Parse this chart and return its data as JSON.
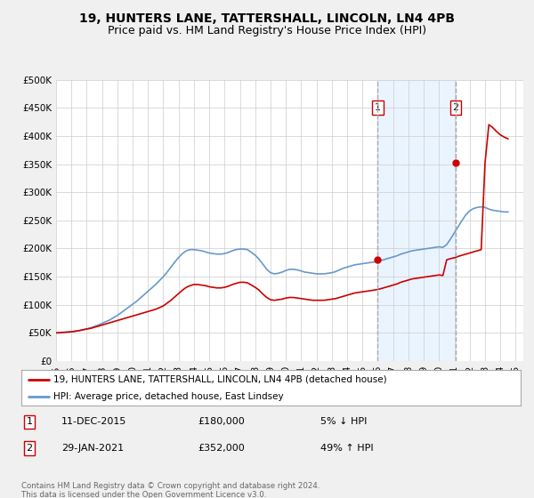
{
  "title": "19, HUNTERS LANE, TATTERSHALL, LINCOLN, LN4 4PB",
  "subtitle": "Price paid vs. HM Land Registry's House Price Index (HPI)",
  "title_fontsize": 10,
  "subtitle_fontsize": 9,
  "ylim": [
    0,
    500000
  ],
  "xlim_start": 1995.0,
  "xlim_end": 2025.5,
  "yticks": [
    0,
    50000,
    100000,
    150000,
    200000,
    250000,
    300000,
    350000,
    400000,
    450000,
    500000
  ],
  "ytick_labels": [
    "£0",
    "£50K",
    "£100K",
    "£150K",
    "£200K",
    "£250K",
    "£300K",
    "£350K",
    "£400K",
    "£450K",
    "£500K"
  ],
  "xticks": [
    1995,
    1996,
    1997,
    1998,
    1999,
    2000,
    2001,
    2002,
    2003,
    2004,
    2005,
    2006,
    2007,
    2008,
    2009,
    2010,
    2011,
    2012,
    2013,
    2014,
    2015,
    2016,
    2017,
    2018,
    2019,
    2020,
    2021,
    2022,
    2023,
    2024,
    2025
  ],
  "bg_color": "#f0f0f0",
  "plot_bg_color": "#ffffff",
  "grid_color": "#cccccc",
  "event1_x": 2016.0,
  "event1_label": "1",
  "event1_price": 180000,
  "event1_date": "11-DEC-2015",
  "event1_hpi_pct": "5% ↓ HPI",
  "event2_x": 2021.08,
  "event2_label": "2",
  "event2_price": 352000,
  "event2_date": "29-JAN-2021",
  "event2_hpi_pct": "49% ↑ HPI",
  "shade_color": "#ddeeff",
  "legend_line1": "19, HUNTERS LANE, TATTERSHALL, LINCOLN, LN4 4PB (detached house)",
  "legend_line2": "HPI: Average price, detached house, East Lindsey",
  "footer": "Contains HM Land Registry data © Crown copyright and database right 2024.\nThis data is licensed under the Open Government Licence v3.0.",
  "hpi_x": [
    1995.0,
    1995.25,
    1995.5,
    1995.75,
    1996.0,
    1996.25,
    1996.5,
    1996.75,
    1997.0,
    1997.25,
    1997.5,
    1997.75,
    1998.0,
    1998.25,
    1998.5,
    1998.75,
    1999.0,
    1999.25,
    1999.5,
    1999.75,
    2000.0,
    2000.25,
    2000.5,
    2000.75,
    2001.0,
    2001.25,
    2001.5,
    2001.75,
    2002.0,
    2002.25,
    2002.5,
    2002.75,
    2003.0,
    2003.25,
    2003.5,
    2003.75,
    2004.0,
    2004.25,
    2004.5,
    2004.75,
    2005.0,
    2005.25,
    2005.5,
    2005.75,
    2006.0,
    2006.25,
    2006.5,
    2006.75,
    2007.0,
    2007.25,
    2007.5,
    2007.75,
    2008.0,
    2008.25,
    2008.5,
    2008.75,
    2009.0,
    2009.25,
    2009.5,
    2009.75,
    2010.0,
    2010.25,
    2010.5,
    2010.75,
    2011.0,
    2011.25,
    2011.5,
    2011.75,
    2012.0,
    2012.25,
    2012.5,
    2012.75,
    2013.0,
    2013.25,
    2013.5,
    2013.75,
    2014.0,
    2014.25,
    2014.5,
    2014.75,
    2015.0,
    2015.25,
    2015.5,
    2015.75,
    2016.0,
    2016.25,
    2016.5,
    2016.75,
    2017.0,
    2017.25,
    2017.5,
    2017.75,
    2018.0,
    2018.25,
    2018.5,
    2018.75,
    2019.0,
    2019.25,
    2019.5,
    2019.75,
    2020.0,
    2020.25,
    2020.5,
    2020.75,
    2021.0,
    2021.25,
    2021.5,
    2021.75,
    2022.0,
    2022.25,
    2022.5,
    2022.75,
    2023.0,
    2023.25,
    2023.5,
    2023.75,
    2024.0,
    2024.25,
    2024.5
  ],
  "hpi_y": [
    50000,
    50500,
    51000,
    51500,
    52000,
    53000,
    54000,
    55500,
    57000,
    59000,
    61500,
    64000,
    67000,
    70000,
    73000,
    77000,
    81000,
    86000,
    91000,
    96000,
    101000,
    106000,
    112000,
    118000,
    124000,
    130000,
    136000,
    143000,
    150000,
    158000,
    167000,
    176000,
    184000,
    191000,
    196000,
    198000,
    198000,
    197000,
    196000,
    194000,
    192000,
    191000,
    190000,
    190000,
    191000,
    193000,
    196000,
    198000,
    199000,
    199000,
    198000,
    193000,
    188000,
    181000,
    172000,
    163000,
    157000,
    155000,
    156000,
    158000,
    161000,
    163000,
    163000,
    162000,
    160000,
    158000,
    157000,
    156000,
    155000,
    155000,
    155000,
    156000,
    157000,
    159000,
    162000,
    165000,
    167000,
    169000,
    171000,
    172000,
    173000,
    174000,
    175000,
    176000,
    177000,
    179000,
    181000,
    183000,
    185000,
    187000,
    190000,
    192000,
    194000,
    196000,
    197000,
    198000,
    199000,
    200000,
    201000,
    202000,
    203000,
    202000,
    207000,
    217000,
    228000,
    239000,
    250000,
    260000,
    267000,
    271000,
    273000,
    274000,
    273000,
    270000,
    268000,
    267000,
    266000,
    265000,
    265000
  ],
  "red_x": [
    1995.0,
    1995.25,
    1995.5,
    1995.75,
    1996.0,
    1996.25,
    1996.5,
    1996.75,
    1997.0,
    1997.25,
    1997.5,
    1997.75,
    1998.0,
    1998.25,
    1998.5,
    1998.75,
    1999.0,
    1999.25,
    1999.5,
    1999.75,
    2000.0,
    2000.25,
    2000.5,
    2000.75,
    2001.0,
    2001.25,
    2001.5,
    2001.75,
    2002.0,
    2002.25,
    2002.5,
    2002.75,
    2003.0,
    2003.25,
    2003.5,
    2003.75,
    2004.0,
    2004.25,
    2004.5,
    2004.75,
    2005.0,
    2005.25,
    2005.5,
    2005.75,
    2006.0,
    2006.25,
    2006.5,
    2006.75,
    2007.0,
    2007.25,
    2007.5,
    2007.75,
    2008.0,
    2008.25,
    2008.5,
    2008.75,
    2009.0,
    2009.25,
    2009.5,
    2009.75,
    2010.0,
    2010.25,
    2010.5,
    2010.75,
    2011.0,
    2011.25,
    2011.5,
    2011.75,
    2012.0,
    2012.25,
    2012.5,
    2012.75,
    2013.0,
    2013.25,
    2013.5,
    2013.75,
    2014.0,
    2014.25,
    2014.5,
    2014.75,
    2015.0,
    2015.25,
    2015.5,
    2015.75,
    2015.95,
    2016.25,
    2016.5,
    2016.75,
    2017.0,
    2017.25,
    2017.5,
    2017.75,
    2018.0,
    2018.25,
    2018.5,
    2018.75,
    2019.0,
    2019.25,
    2019.5,
    2019.75,
    2020.0,
    2020.25,
    2020.5,
    2020.75,
    2021.08,
    2021.25,
    2021.5,
    2021.75,
    2022.0,
    2022.25,
    2022.5,
    2022.75,
    2023.0,
    2023.25,
    2023.5,
    2023.75,
    2024.0,
    2024.25,
    2024.5
  ],
  "red_y": [
    50000,
    50500,
    51000,
    51500,
    52000,
    53000,
    54000,
    55500,
    57000,
    58000,
    60000,
    62000,
    64000,
    66000,
    68000,
    70000,
    72000,
    74000,
    76000,
    78000,
    80000,
    82000,
    84000,
    86000,
    88000,
    90000,
    92000,
    95000,
    98000,
    103000,
    108000,
    114000,
    120000,
    126000,
    131000,
    134000,
    136000,
    136000,
    135000,
    134000,
    132000,
    131000,
    130000,
    130000,
    131000,
    133000,
    136000,
    138000,
    140000,
    140000,
    139000,
    135000,
    131000,
    126000,
    119000,
    113000,
    109000,
    108000,
    109000,
    110000,
    112000,
    113000,
    113000,
    112000,
    111000,
    110000,
    109000,
    108000,
    108000,
    108000,
    108000,
    109000,
    110000,
    111000,
    113000,
    115000,
    117000,
    119000,
    121000,
    122000,
    123000,
    124000,
    125000,
    126000,
    127000,
    129000,
    131000,
    133000,
    135000,
    137000,
    140000,
    142000,
    144000,
    146000,
    147000,
    148000,
    149000,
    150000,
    151000,
    152000,
    153000,
    152000,
    180000,
    182000,
    184000,
    186000,
    188000,
    190000,
    192000,
    194000,
    196000,
    198000,
    352000,
    420000,
    415000,
    408000,
    402000,
    398000,
    395000
  ],
  "red_color": "#cc0000",
  "blue_color": "#6699cc",
  "vline_color": "#aaaaaa"
}
